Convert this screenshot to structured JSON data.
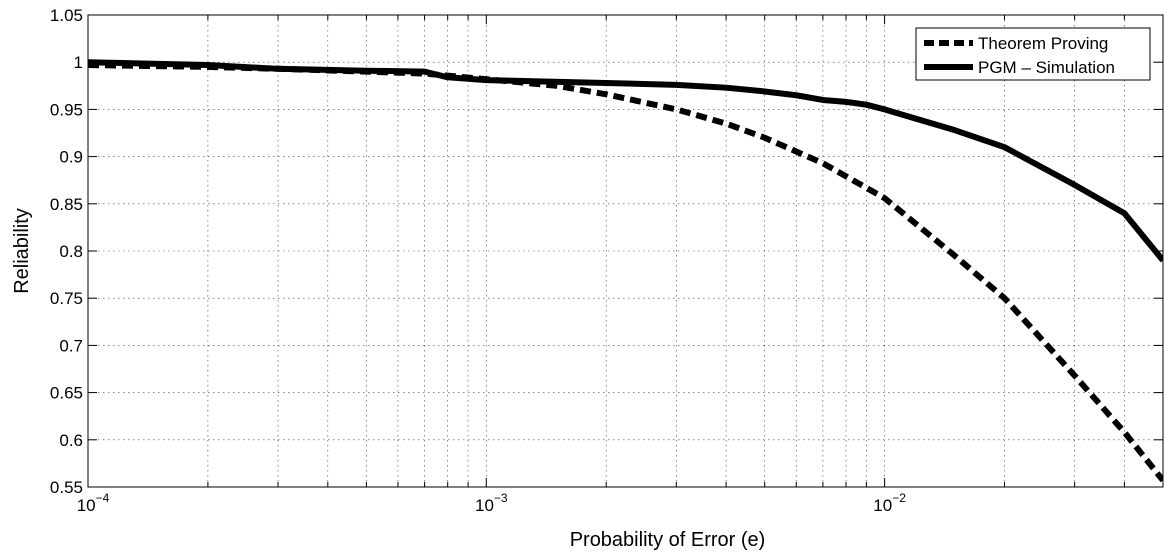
{
  "chart_data": {
    "type": "line",
    "xlabel": "Probability of Error (e)",
    "ylabel": "Reliability",
    "xscale": "log",
    "xlim": [
      0.0001,
      0.05
    ],
    "ylim": [
      0.55,
      1.05
    ],
    "grid": true,
    "legend_position": "top-right",
    "x_ticks": [
      {
        "value": 0.0001,
        "base": "10",
        "exp": "−4"
      },
      {
        "value": 0.001,
        "base": "10",
        "exp": "−3"
      },
      {
        "value": 0.01,
        "base": "10",
        "exp": "−2"
      }
    ],
    "y_ticks": [
      {
        "value": 0.55,
        "label": "0.55"
      },
      {
        "value": 0.6,
        "label": "0.6"
      },
      {
        "value": 0.65,
        "label": "0.65"
      },
      {
        "value": 0.7,
        "label": "0.7"
      },
      {
        "value": 0.75,
        "label": "0.75"
      },
      {
        "value": 0.8,
        "label": "0.8"
      },
      {
        "value": 0.85,
        "label": "0.85"
      },
      {
        "value": 0.9,
        "label": "0.9"
      },
      {
        "value": 0.95,
        "label": "0.95"
      },
      {
        "value": 1.0,
        "label": "1"
      },
      {
        "value": 1.05,
        "label": "1.05"
      }
    ],
    "series": [
      {
        "name": "Theorem Proving",
        "style": "dashed",
        "color": "#000000",
        "x": [
          0.0001,
          0.0002,
          0.0003,
          0.0005,
          0.0007,
          0.001,
          0.0015,
          0.002,
          0.003,
          0.004,
          0.005,
          0.007,
          0.01,
          0.015,
          0.02,
          0.03,
          0.04,
          0.05
        ],
        "y": [
          0.997,
          0.995,
          0.993,
          0.99,
          0.988,
          0.982,
          0.975,
          0.966,
          0.95,
          0.935,
          0.92,
          0.893,
          0.856,
          0.795,
          0.75,
          0.668,
          0.608,
          0.557
        ]
      },
      {
        "name": "PGM – Simulation",
        "style": "solid",
        "color": "#000000",
        "x": [
          0.0001,
          0.0002,
          0.0003,
          0.0005,
          0.0007,
          0.0008,
          0.001,
          0.002,
          0.003,
          0.004,
          0.005,
          0.006,
          0.007,
          0.008,
          0.009,
          0.01,
          0.015,
          0.02,
          0.03,
          0.04,
          0.05
        ],
        "y": [
          1.0,
          0.997,
          0.993,
          0.991,
          0.99,
          0.984,
          0.981,
          0.978,
          0.976,
          0.973,
          0.969,
          0.965,
          0.96,
          0.958,
          0.955,
          0.95,
          0.928,
          0.91,
          0.87,
          0.84,
          0.79
        ]
      }
    ]
  }
}
